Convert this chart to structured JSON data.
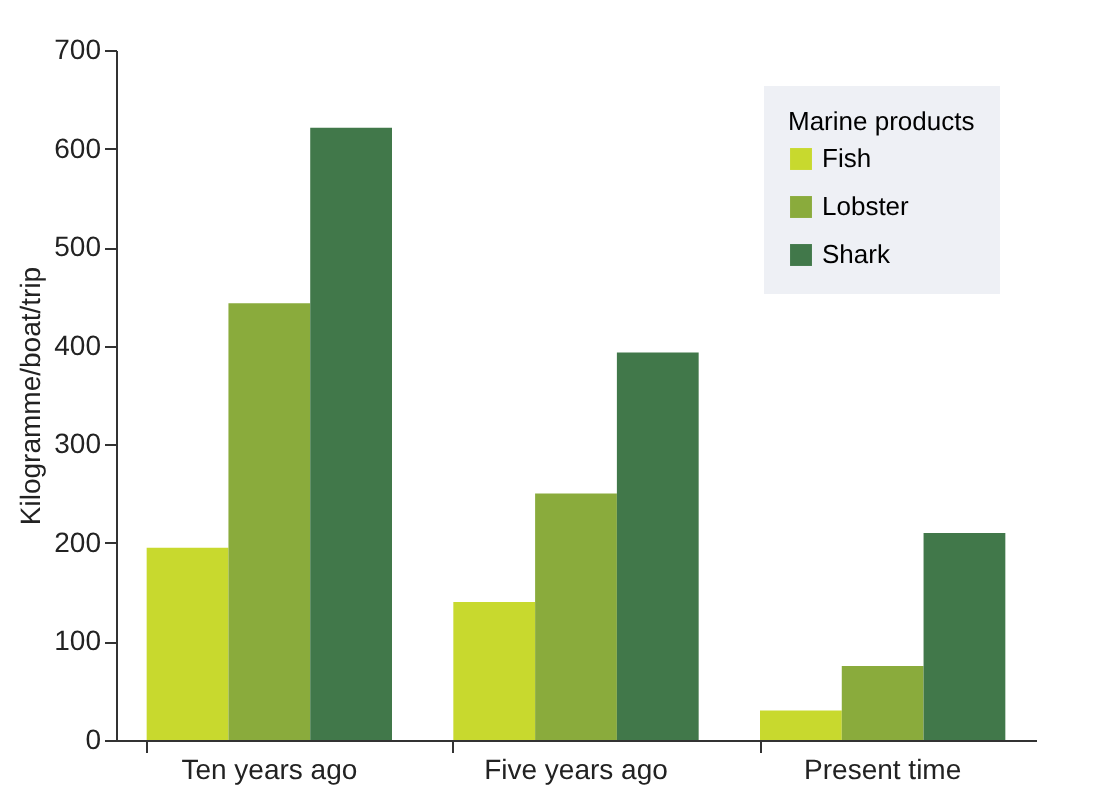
{
  "chart_data": {
    "type": "bar",
    "ylabel": "Kilogramme/boat/trip",
    "legend_title": "Marine products",
    "categories": [
      "Ten years ago",
      "Five years ago",
      "Present time"
    ],
    "series": [
      {
        "name": "Fish",
        "color": "#c8d92e",
        "values": [
          195,
          140,
          30
        ]
      },
      {
        "name": "Lobster",
        "color": "#8aab3c",
        "values": [
          443,
          250,
          75
        ]
      },
      {
        "name": "Shark",
        "color": "#41784a",
        "values": [
          621,
          393,
          210
        ]
      }
    ],
    "ylim": [
      0,
      700
    ],
    "yticks": [
      0,
      100,
      200,
      300,
      400,
      500,
      600,
      700
    ],
    "grid": false,
    "legend": "top right"
  }
}
